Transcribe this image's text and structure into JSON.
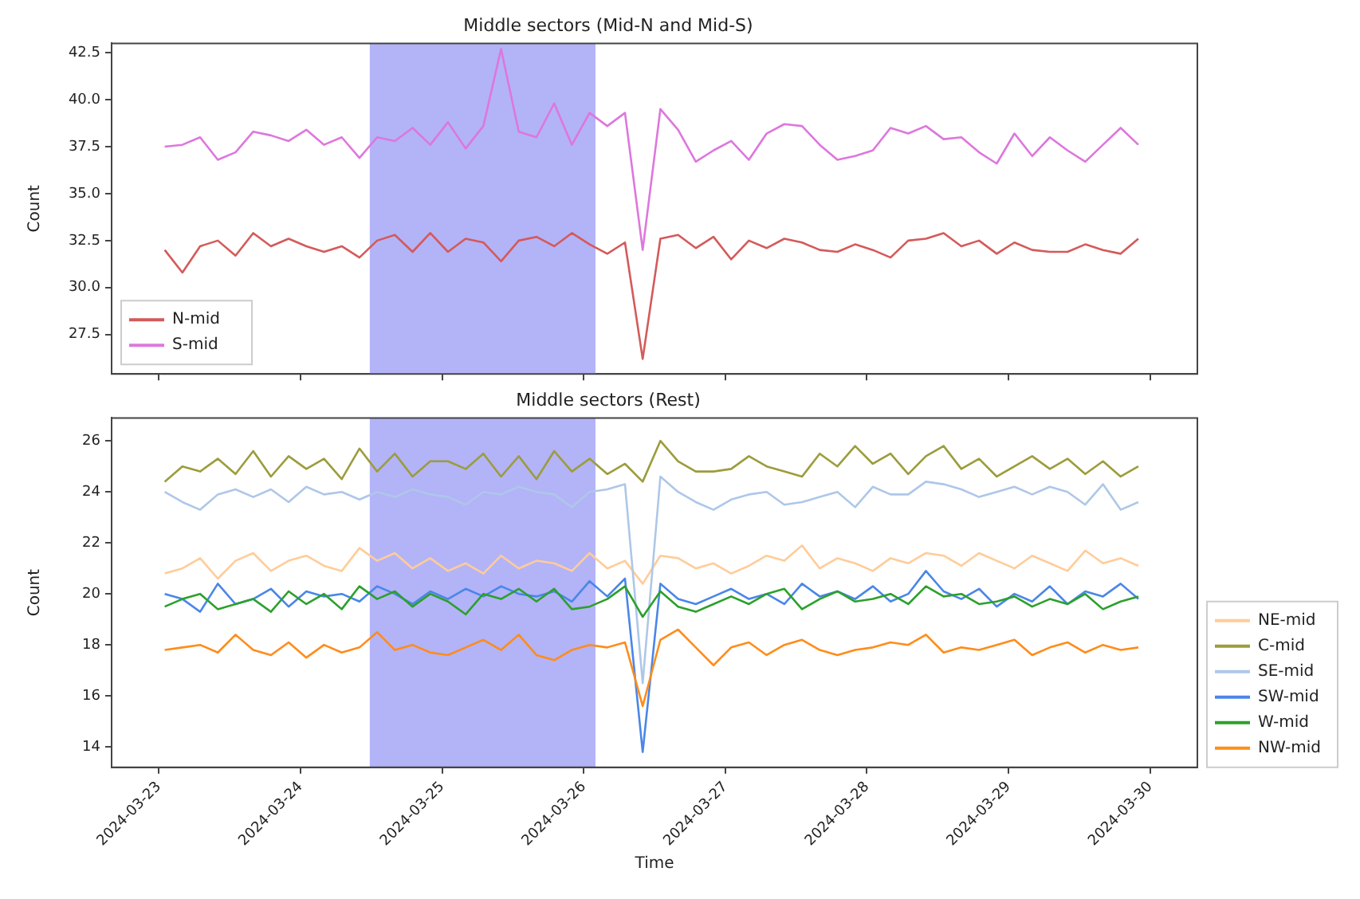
{
  "chart_data": [
    {
      "type": "line",
      "title": "Middle sectors (Mid-N and Mid-S)",
      "ylabel": "Count",
      "legend": "bottom left",
      "grid": false,
      "tick_labels": "y",
      "x": [
        "2024-03-23T01:00",
        "2024-03-23T04:00",
        "2024-03-23T07:00",
        "2024-03-23T10:00",
        "2024-03-23T13:00",
        "2024-03-23T16:00",
        "2024-03-23T19:00",
        "2024-03-23T22:00",
        "2024-03-24T01:00",
        "2024-03-24T04:00",
        "2024-03-24T07:00",
        "2024-03-24T10:00",
        "2024-03-24T13:00",
        "2024-03-24T16:00",
        "2024-03-24T19:00",
        "2024-03-24T22:00",
        "2024-03-25T01:00",
        "2024-03-25T04:00",
        "2024-03-25T07:00",
        "2024-03-25T10:00",
        "2024-03-25T13:00",
        "2024-03-25T16:00",
        "2024-03-25T19:00",
        "2024-03-25T22:00",
        "2024-03-26T01:00",
        "2024-03-26T04:00",
        "2024-03-26T07:00",
        "2024-03-26T10:00",
        "2024-03-26T13:00",
        "2024-03-26T16:00",
        "2024-03-26T19:00",
        "2024-03-26T22:00",
        "2024-03-27T01:00",
        "2024-03-27T04:00",
        "2024-03-27T07:00",
        "2024-03-27T10:00",
        "2024-03-27T13:00",
        "2024-03-27T16:00",
        "2024-03-27T19:00",
        "2024-03-27T22:00",
        "2024-03-28T01:00",
        "2024-03-28T04:00",
        "2024-03-28T07:00",
        "2024-03-28T10:00",
        "2024-03-28T13:00",
        "2024-03-28T16:00",
        "2024-03-28T19:00",
        "2024-03-28T22:00",
        "2024-03-29T01:00",
        "2024-03-29T04:00",
        "2024-03-29T07:00",
        "2024-03-29T10:00",
        "2024-03-29T13:00",
        "2024-03-29T16:00",
        "2024-03-29T19:00",
        "2024-03-29T22:00"
      ],
      "xlim": [
        "2024-03-22T16:00",
        "2024-03-30T08:00"
      ],
      "xticks": [
        "2024-03-23",
        "2024-03-24",
        "2024-03-25",
        "2024-03-26",
        "2024-03-27",
        "2024-03-28",
        "2024-03-29",
        "2024-03-30"
      ],
      "ylim": [
        25.4,
        43.0
      ],
      "yticks": [
        {
          "value": 27.5,
          "label": "27.5"
        },
        {
          "value": 30,
          "label": "30.0"
        },
        {
          "value": 32.5,
          "label": "32.5"
        },
        {
          "value": 35,
          "label": "35.0"
        },
        {
          "value": 37.5,
          "label": "37.5"
        },
        {
          "value": 40,
          "label": "40.0"
        },
        {
          "value": 42.5,
          "label": "42.5"
        }
      ],
      "bands": [
        {
          "axis": "x",
          "from": "2024-03-24T11:45",
          "to": "2024-03-26T02:00",
          "color": "#b3b3f8"
        }
      ],
      "series": [
        {
          "name": "N-mid",
          "color": "#d45a5a",
          "values": [
            32.0,
            30.8,
            32.2,
            32.5,
            31.7,
            32.9,
            32.2,
            32.6,
            32.2,
            31.9,
            32.2,
            31.6,
            32.5,
            32.8,
            31.9,
            32.9,
            31.9,
            32.6,
            32.4,
            31.4,
            32.5,
            32.7,
            32.2,
            32.9,
            32.3,
            31.8,
            32.4,
            26.2,
            32.6,
            32.8,
            32.1,
            32.7,
            31.5,
            32.5,
            32.1,
            32.6,
            32.4,
            32.0,
            31.9,
            32.3,
            32.0,
            31.6,
            32.5,
            32.6,
            32.9,
            32.2,
            32.5,
            31.8,
            32.4,
            32.0,
            31.9,
            31.9,
            32.3,
            32.0,
            31.8,
            32.6
          ]
        },
        {
          "name": "S-mid",
          "color": "#dd77dd",
          "values": [
            37.5,
            37.6,
            38.0,
            36.8,
            37.2,
            38.3,
            38.1,
            37.8,
            38.4,
            37.6,
            38.0,
            36.9,
            38.0,
            37.8,
            38.5,
            37.6,
            38.8,
            37.4,
            38.6,
            42.7,
            38.3,
            38.0,
            39.8,
            37.6,
            39.3,
            38.6,
            39.3,
            32.0,
            39.5,
            38.4,
            36.7,
            37.3,
            37.8,
            36.8,
            38.2,
            38.7,
            38.6,
            37.6,
            36.8,
            37.0,
            37.3,
            38.5,
            38.2,
            38.6,
            37.9,
            38.0,
            37.2,
            36.6,
            38.2,
            37.0,
            38.0,
            37.3,
            36.7,
            37.6,
            38.5,
            37.6
          ]
        }
      ]
    },
    {
      "type": "line",
      "title": "Middle sectors (Rest)",
      "xlabel": "Time",
      "ylabel": "Count",
      "legend": "right",
      "grid": false,
      "x": [
        "2024-03-23T01:00",
        "2024-03-23T04:00",
        "2024-03-23T07:00",
        "2024-03-23T10:00",
        "2024-03-23T13:00",
        "2024-03-23T16:00",
        "2024-03-23T19:00",
        "2024-03-23T22:00",
        "2024-03-24T01:00",
        "2024-03-24T04:00",
        "2024-03-24T07:00",
        "2024-03-24T10:00",
        "2024-03-24T13:00",
        "2024-03-24T16:00",
        "2024-03-24T19:00",
        "2024-03-24T22:00",
        "2024-03-25T01:00",
        "2024-03-25T04:00",
        "2024-03-25T07:00",
        "2024-03-25T10:00",
        "2024-03-25T13:00",
        "2024-03-25T16:00",
        "2024-03-25T19:00",
        "2024-03-25T22:00",
        "2024-03-26T01:00",
        "2024-03-26T04:00",
        "2024-03-26T07:00",
        "2024-03-26T10:00",
        "2024-03-26T13:00",
        "2024-03-26T16:00",
        "2024-03-26T19:00",
        "2024-03-26T22:00",
        "2024-03-27T01:00",
        "2024-03-27T04:00",
        "2024-03-27T07:00",
        "2024-03-27T10:00",
        "2024-03-27T13:00",
        "2024-03-27T16:00",
        "2024-03-27T19:00",
        "2024-03-27T22:00",
        "2024-03-28T01:00",
        "2024-03-28T04:00",
        "2024-03-28T07:00",
        "2024-03-28T10:00",
        "2024-03-28T13:00",
        "2024-03-28T16:00",
        "2024-03-28T19:00",
        "2024-03-28T22:00",
        "2024-03-29T01:00",
        "2024-03-29T04:00",
        "2024-03-29T07:00",
        "2024-03-29T10:00",
        "2024-03-29T13:00",
        "2024-03-29T16:00",
        "2024-03-29T19:00",
        "2024-03-29T22:00"
      ],
      "xlim": [
        "2024-03-22T16:00",
        "2024-03-30T08:00"
      ],
      "xticks": [
        "2024-03-23",
        "2024-03-24",
        "2024-03-25",
        "2024-03-26",
        "2024-03-27",
        "2024-03-28",
        "2024-03-29",
        "2024-03-30"
      ],
      "ylim": [
        13.2,
        26.9
      ],
      "yticks": [
        14,
        16,
        18,
        20,
        22,
        24,
        26
      ],
      "bands": [
        {
          "axis": "x",
          "from": "2024-03-24T11:45",
          "to": "2024-03-26T02:00",
          "color": "#b3b3f8"
        }
      ],
      "series": [
        {
          "name": "NE-mid",
          "color": "#ffcc99",
          "values": [
            20.8,
            21.0,
            21.4,
            20.6,
            21.3,
            21.6,
            20.9,
            21.3,
            21.5,
            21.1,
            20.9,
            21.8,
            21.3,
            21.6,
            21.0,
            21.4,
            20.9,
            21.2,
            20.8,
            21.5,
            21.0,
            21.3,
            21.2,
            20.9,
            21.6,
            21.0,
            21.3,
            20.4,
            21.5,
            21.4,
            21.0,
            21.2,
            20.8,
            21.1,
            21.5,
            21.3,
            21.9,
            21.0,
            21.4,
            21.2,
            20.9,
            21.4,
            21.2,
            21.6,
            21.5,
            21.1,
            21.6,
            21.3,
            21.0,
            21.5,
            21.2,
            20.9,
            21.7,
            21.2,
            21.4,
            21.1
          ]
        },
        {
          "name": "C-mid",
          "color": "#9c9c3c",
          "values": [
            24.4,
            25.0,
            24.8,
            25.3,
            24.7,
            25.6,
            24.6,
            25.4,
            24.9,
            25.3,
            24.5,
            25.7,
            24.8,
            25.5,
            24.6,
            25.2,
            25.2,
            24.9,
            25.5,
            24.6,
            25.4,
            24.5,
            25.6,
            24.8,
            25.3,
            24.7,
            25.1,
            24.4,
            26.0,
            25.2,
            24.8,
            24.8,
            24.9,
            25.4,
            25.0,
            24.8,
            24.6,
            25.5,
            25.0,
            25.8,
            25.1,
            25.5,
            24.7,
            25.4,
            25.8,
            24.9,
            25.3,
            24.6,
            25.0,
            25.4,
            24.9,
            25.3,
            24.7,
            25.2,
            24.6,
            25.0
          ]
        },
        {
          "name": "SE-mid",
          "color": "#aec7e8",
          "values": [
            24.0,
            23.6,
            23.3,
            23.9,
            24.1,
            23.8,
            24.1,
            23.6,
            24.2,
            23.9,
            24.0,
            23.7,
            24.0,
            23.8,
            24.1,
            23.9,
            23.8,
            23.5,
            24.0,
            23.9,
            24.2,
            24.0,
            23.9,
            23.4,
            24.0,
            24.1,
            24.3,
            16.5,
            24.6,
            24.0,
            23.6,
            23.3,
            23.7,
            23.9,
            24.0,
            23.5,
            23.6,
            23.8,
            24.0,
            23.4,
            24.2,
            23.9,
            23.9,
            24.4,
            24.3,
            24.1,
            23.8,
            24.0,
            24.2,
            23.9,
            24.2,
            24.0,
            23.5,
            24.3,
            23.3,
            23.6
          ]
        },
        {
          "name": "SW-mid",
          "color": "#4a86e8",
          "values": [
            20.0,
            19.8,
            19.3,
            20.4,
            19.6,
            19.8,
            20.2,
            19.5,
            20.1,
            19.9,
            20.0,
            19.7,
            20.3,
            20.0,
            19.6,
            20.1,
            19.8,
            20.2,
            19.9,
            20.3,
            20.0,
            19.9,
            20.1,
            19.7,
            20.5,
            19.9,
            20.6,
            13.8,
            20.4,
            19.8,
            19.6,
            19.9,
            20.2,
            19.8,
            20.0,
            19.6,
            20.4,
            19.9,
            20.1,
            19.8,
            20.3,
            19.7,
            20.0,
            20.9,
            20.1,
            19.8,
            20.2,
            19.5,
            20.0,
            19.7,
            20.3,
            19.6,
            20.1,
            19.9,
            20.4,
            19.8
          ]
        },
        {
          "name": "W-mid",
          "color": "#2ca02c",
          "values": [
            19.5,
            19.8,
            20.0,
            19.4,
            19.6,
            19.8,
            19.3,
            20.1,
            19.6,
            20.0,
            19.4,
            20.3,
            19.8,
            20.1,
            19.5,
            20.0,
            19.7,
            19.2,
            20.0,
            19.8,
            20.2,
            19.7,
            20.2,
            19.4,
            19.5,
            19.8,
            20.3,
            19.1,
            20.1,
            19.5,
            19.3,
            19.6,
            19.9,
            19.6,
            20.0,
            20.2,
            19.4,
            19.8,
            20.1,
            19.7,
            19.8,
            20.0,
            19.6,
            20.3,
            19.9,
            20.0,
            19.6,
            19.7,
            19.9,
            19.5,
            19.8,
            19.6,
            20.0,
            19.4,
            19.7,
            19.9
          ]
        },
        {
          "name": "NW-mid",
          "color": "#ff8c1a",
          "values": [
            17.8,
            17.9,
            18.0,
            17.7,
            18.4,
            17.8,
            17.6,
            18.1,
            17.5,
            18.0,
            17.7,
            17.9,
            18.5,
            17.8,
            18.0,
            17.7,
            17.6,
            17.9,
            18.2,
            17.8,
            18.4,
            17.6,
            17.4,
            17.8,
            18.0,
            17.9,
            18.1,
            15.6,
            18.2,
            18.6,
            17.9,
            17.2,
            17.9,
            18.1,
            17.6,
            18.0,
            18.2,
            17.8,
            17.6,
            17.8,
            17.9,
            18.1,
            18.0,
            18.4,
            17.7,
            17.9,
            17.8,
            18.0,
            18.2,
            17.6,
            17.9,
            18.1,
            17.7,
            18.0,
            17.8,
            17.9
          ]
        }
      ]
    }
  ]
}
